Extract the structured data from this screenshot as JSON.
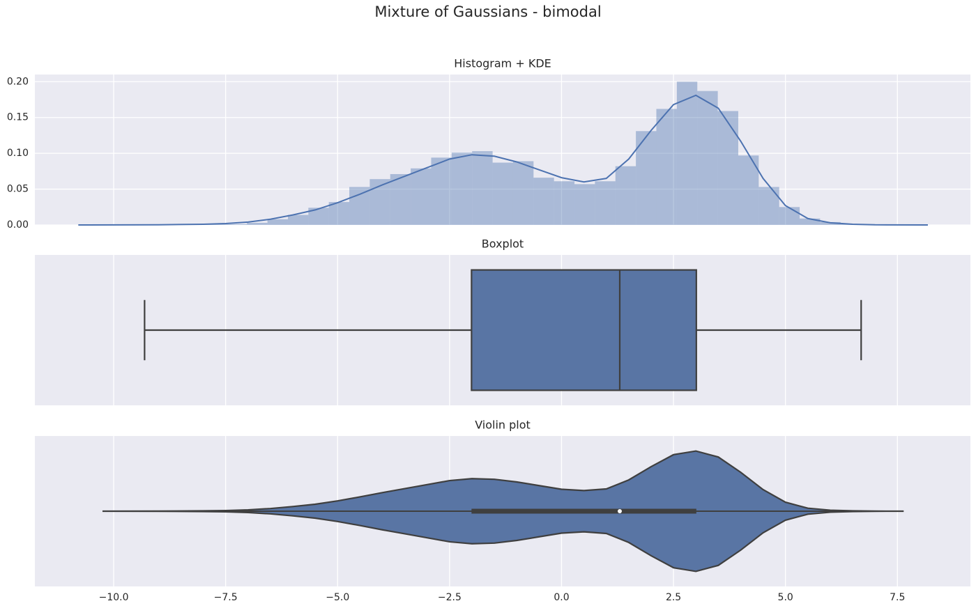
{
  "suptitle": "Mixture of Gaussians - bimodal",
  "chart_data": [
    {
      "type": "histogram",
      "title": "Histogram + KDE",
      "color": "#4c72b0",
      "bins": [
        -9.31,
        -8.853,
        -8.396,
        -7.939,
        -7.482,
        -7.025,
        -6.567,
        -6.11,
        -5.653,
        -5.196,
        -4.739,
        -4.282,
        -3.825,
        -3.368,
        -2.911,
        -2.454,
        -1.996,
        -1.539,
        -1.082,
        -0.625,
        -0.168,
        0.289,
        0.746,
        1.203,
        1.66,
        2.117,
        2.575,
        3.032,
        3.489,
        3.946,
        4.403,
        4.86,
        5.317,
        5.774,
        6.231,
        6.688
      ],
      "values": [
        0.0003,
        0.0003,
        0.0005,
        0.001,
        0.001,
        0.003,
        0.008,
        0.014,
        0.024,
        0.032,
        0.053,
        0.064,
        0.071,
        0.079,
        0.094,
        0.101,
        0.103,
        0.087,
        0.089,
        0.066,
        0.061,
        0.057,
        0.061,
        0.082,
        0.131,
        0.162,
        0.2,
        0.187,
        0.159,
        0.097,
        0.053,
        0.025,
        0.009,
        0.004,
        0.001
      ],
      "kde": {
        "x": [
          -10.79,
          -9,
          -8,
          -7.5,
          -7,
          -6.5,
          -6,
          -5.5,
          -5,
          -4.5,
          -4,
          -3.5,
          -3,
          -2.5,
          -2,
          -1.5,
          -1,
          -0.5,
          0,
          0.5,
          1,
          1.5,
          2,
          2.5,
          3,
          3.5,
          4,
          4.5,
          5,
          5.5,
          6,
          6.5,
          7,
          8.18
        ],
        "density": [
          0,
          0.0003,
          0.001,
          0.002,
          0.004,
          0.008,
          0.014,
          0.021,
          0.031,
          0.043,
          0.056,
          0.068,
          0.08,
          0.092,
          0.098,
          0.096,
          0.088,
          0.077,
          0.066,
          0.06,
          0.065,
          0.092,
          0.132,
          0.168,
          0.181,
          0.163,
          0.117,
          0.065,
          0.027,
          0.009,
          0.003,
          0.001,
          0.0002,
          0
        ]
      },
      "ylim": [
        0,
        0.21
      ],
      "yticks": [
        {
          "value": 0,
          "label": "0.00"
        },
        {
          "value": 0.05,
          "label": "0.05"
        },
        {
          "value": 0.1,
          "label": "0.10"
        },
        {
          "value": 0.15,
          "label": "0.15"
        },
        {
          "value": 0.2,
          "label": "0.20"
        }
      ],
      "grid": true
    },
    {
      "type": "box",
      "title": "Boxplot",
      "color": "#5975a4",
      "whislo": -9.31,
      "q1": -2.01,
      "med": 1.3,
      "q3": 3.01,
      "whishi": 6.69
    },
    {
      "type": "violin",
      "title": "Violin plot",
      "color": "#5975a4",
      "x": [
        -10.25,
        -9,
        -8,
        -7.5,
        -7,
        -6.5,
        -6,
        -5.5,
        -5,
        -4.5,
        -4,
        -3.5,
        -3,
        -2.5,
        -2,
        -1.5,
        -1,
        -0.5,
        0,
        0.5,
        1,
        1.5,
        2,
        2.5,
        3,
        3.5,
        4,
        4.5,
        5,
        5.5,
        6,
        6.5,
        7,
        7.64
      ],
      "density": [
        0,
        0.0003,
        0.001,
        0.002,
        0.004,
        0.008,
        0.014,
        0.021,
        0.031,
        0.043,
        0.056,
        0.068,
        0.08,
        0.092,
        0.098,
        0.096,
        0.088,
        0.077,
        0.066,
        0.062,
        0.067,
        0.094,
        0.134,
        0.17,
        0.181,
        0.163,
        0.117,
        0.065,
        0.027,
        0.009,
        0.003,
        0.001,
        0.0002,
        0
      ],
      "xlim": [
        -11.76,
        9.13
      ],
      "xticks": [
        {
          "value": -10,
          "label": "−10.0"
        },
        {
          "value": -7.5,
          "label": "−7.5"
        },
        {
          "value": -5,
          "label": "−5.0"
        },
        {
          "value": -2.5,
          "label": "−2.5"
        },
        {
          "value": 0,
          "label": "0.0"
        },
        2.5,
        {
          "value": 5,
          "label": "5.0"
        },
        7.5
      ],
      "grid": true
    }
  ]
}
